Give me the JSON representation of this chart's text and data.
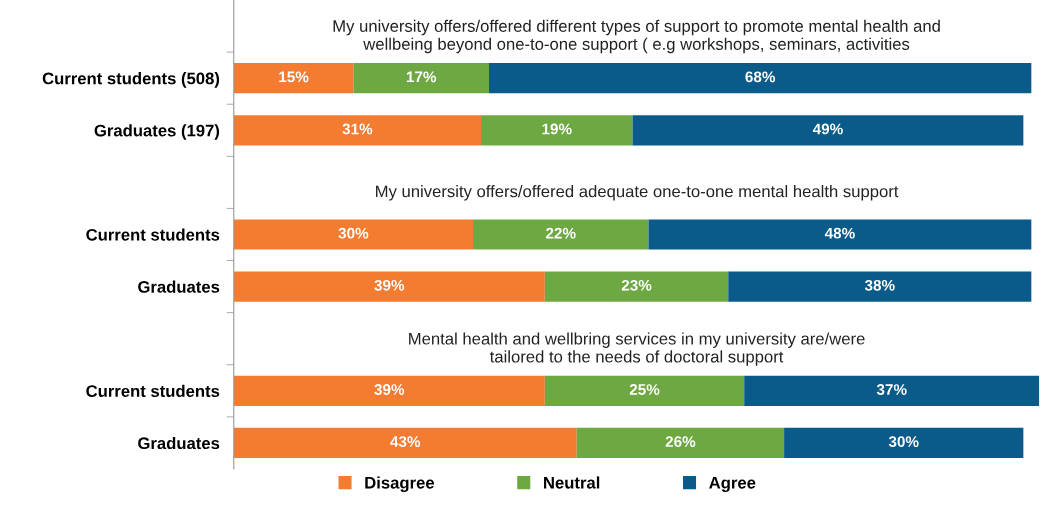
{
  "chart_data": {
    "type": "bar",
    "orientation": "horizontal",
    "stacked": true,
    "categories": [
      null,
      "Current students (508)",
      "Graduates (197)",
      null,
      "Current students",
      "Graduates",
      null,
      "Current students",
      "Graduates"
    ],
    "series": [
      {
        "name": "Disagree",
        "color": "#f47c30",
        "values": [
          null,
          15,
          31,
          null,
          30,
          39,
          null,
          39,
          43
        ],
        "value_labels": [
          null,
          "15%",
          "31%",
          null,
          "30%",
          "39%",
          null,
          "39%",
          "43%"
        ]
      },
      {
        "name": "Neutral",
        "color": "#6ea843",
        "values": [
          null,
          17,
          19,
          null,
          22,
          23,
          null,
          25,
          26
        ],
        "value_labels": [
          null,
          "17%",
          "19%",
          null,
          "22%",
          "23%",
          null,
          "25%",
          "26%"
        ]
      },
      {
        "name": "Agree",
        "color": "#0b5b8a",
        "values": [
          null,
          68,
          49,
          null,
          48,
          38,
          null,
          37,
          30
        ],
        "value_labels": [
          null,
          "68%",
          "49%",
          null,
          "48%",
          "38%",
          null,
          "37%",
          "30%"
        ]
      }
    ],
    "annotations": [
      "My university offers/offered different types of support to promote mental health and\nwellbeing beyond one-to-one support ( e.g workshops, seminars, activities",
      "My university offers/offered adequate one-to-one mental health support",
      "Mental health and wellbring services in my university are/were\ntailored to the needs of doctoral support"
    ],
    "legend": "bottom",
    "grid": false
  }
}
